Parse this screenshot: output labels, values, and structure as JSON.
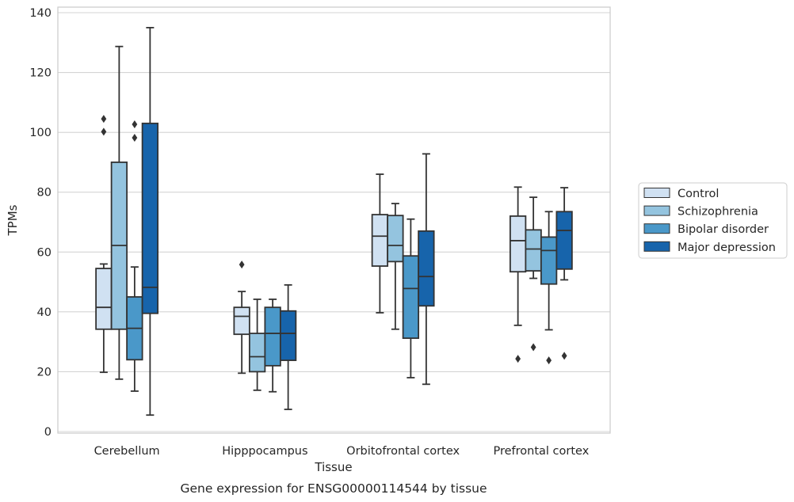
{
  "chart_data": {
    "type": "box",
    "title": "",
    "caption": "Gene expression for ENSG00000114544 by tissue",
    "xlabel": "Tissue",
    "ylabel": "TPMs",
    "ylim": [
      0,
      140
    ],
    "yticks": [
      0,
      20,
      40,
      60,
      80,
      100,
      120,
      140
    ],
    "grid": true,
    "legend_position": "right",
    "categories": [
      "Cerebellum",
      "Hipppocampus",
      "Orbitofrontal cortex",
      "Prefrontal cortex"
    ],
    "series": [
      {
        "name": "Control",
        "color": "#d0e1f2",
        "boxes": [
          {
            "whisker_low": 19.8,
            "q1": 34.2,
            "median": 41.5,
            "q3": 54.5,
            "whisker_high": 56.0,
            "outliers": [
              104.5,
              100.2
            ]
          },
          {
            "whisker_low": 19.5,
            "q1": 32.5,
            "median": 38.5,
            "q3": 41.5,
            "whisker_high": 46.8,
            "outliers": [
              55.8
            ]
          },
          {
            "whisker_low": 39.7,
            "q1": 55.3,
            "median": 65.3,
            "q3": 72.5,
            "whisker_high": 86.0,
            "outliers": []
          },
          {
            "whisker_low": 35.5,
            "q1": 53.4,
            "median": 63.8,
            "q3": 72.0,
            "whisker_high": 81.7,
            "outliers": [
              24.3
            ]
          }
        ]
      },
      {
        "name": "Schizophrenia",
        "color": "#94c4df",
        "boxes": [
          {
            "whisker_low": 17.5,
            "q1": 34.2,
            "median": 62.2,
            "q3": 90.0,
            "whisker_high": 128.7,
            "outliers": []
          },
          {
            "whisker_low": 13.8,
            "q1": 20.0,
            "median": 25.0,
            "q3": 32.8,
            "whisker_high": 44.2,
            "outliers": []
          },
          {
            "whisker_low": 34.2,
            "q1": 56.8,
            "median": 62.2,
            "q3": 72.2,
            "whisker_high": 76.2,
            "outliers": []
          },
          {
            "whisker_low": 51.2,
            "q1": 53.7,
            "median": 61.0,
            "q3": 67.4,
            "whisker_high": 78.3,
            "outliers": [
              28.2
            ]
          }
        ]
      },
      {
        "name": "Bipolar disorder",
        "color": "#4a98c9",
        "boxes": [
          {
            "whisker_low": 13.5,
            "q1": 24.0,
            "median": 34.5,
            "q3": 45.0,
            "whisker_high": 55.0,
            "outliers": [
              102.7,
              98.2
            ]
          },
          {
            "whisker_low": 13.3,
            "q1": 22.0,
            "median": 32.8,
            "q3": 41.5,
            "whisker_high": 44.2,
            "outliers": []
          },
          {
            "whisker_low": 18.0,
            "q1": 31.2,
            "median": 47.8,
            "q3": 58.7,
            "whisker_high": 71.0,
            "outliers": []
          },
          {
            "whisker_low": 34.0,
            "q1": 49.3,
            "median": 60.5,
            "q3": 65.0,
            "whisker_high": 73.5,
            "outliers": [
              23.8
            ]
          }
        ]
      },
      {
        "name": "Major depression",
        "color": "#1764ab",
        "boxes": [
          {
            "whisker_low": 5.5,
            "q1": 39.5,
            "median": 48.2,
            "q3": 103.0,
            "whisker_high": 135.0,
            "outliers": []
          },
          {
            "whisker_low": 7.4,
            "q1": 23.8,
            "median": 32.8,
            "q3": 40.3,
            "whisker_high": 49.0,
            "outliers": []
          },
          {
            "whisker_low": 15.8,
            "q1": 42.0,
            "median": 51.8,
            "q3": 67.0,
            "whisker_high": 92.8,
            "outliers": []
          },
          {
            "whisker_low": 50.7,
            "q1": 54.3,
            "median": 67.2,
            "q3": 73.5,
            "whisker_high": 81.5,
            "outliers": [
              25.3
            ]
          }
        ]
      }
    ]
  }
}
